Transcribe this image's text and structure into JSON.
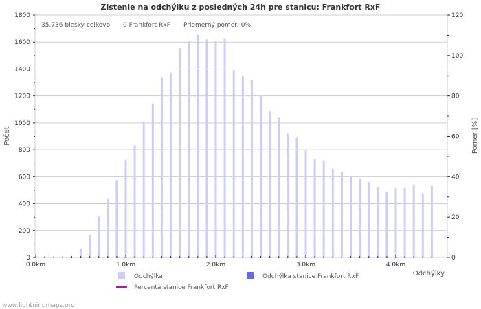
{
  "chart_data": {
    "type": "bar",
    "title": "Zistenie na odchýlku z posledných 24h pre stanicu: Frankfort RxF",
    "stats": {
      "total": "35,736 blesky celkovo",
      "station": "0 Frankfort RxF",
      "ratio": "Priemerný pomer: 0%"
    },
    "xlabel": "Odchýlky",
    "ylabel": "Počet",
    "y2label": "Pomer [%]",
    "x_ticks": [
      "0.0km",
      "1.0km",
      "2.0km",
      "3.0km",
      "4.0km"
    ],
    "x_tick_values": [
      0,
      1,
      2,
      3,
      4
    ],
    "xlim": [
      0,
      4.58
    ],
    "ylim": [
      0,
      1800
    ],
    "y_ticks": [
      "0",
      "200",
      "400",
      "600",
      "800",
      "1000",
      "1200",
      "1400",
      "1600",
      "1800"
    ],
    "y2lim": [
      0,
      120
    ],
    "y2_ticks": [
      "0",
      "20",
      "40",
      "60",
      "80",
      "100",
      "120"
    ],
    "grid": true,
    "x": [
      0,
      0.1,
      0.2,
      0.3,
      0.4,
      0.5,
      0.6,
      0.7,
      0.8,
      0.9,
      1.0,
      1.1,
      1.2,
      1.3,
      1.4,
      1.5,
      1.6,
      1.7,
      1.8,
      1.9,
      2.0,
      2.1,
      2.2,
      2.3,
      2.4,
      2.5,
      2.6,
      2.7,
      2.8,
      2.9,
      3.0,
      3.1,
      3.2,
      3.3,
      3.4,
      3.5,
      3.6,
      3.7,
      3.8,
      3.9,
      4.0,
      4.1,
      4.2,
      4.3,
      4.4
    ],
    "series": [
      {
        "name": "Odchýlka",
        "color": "#ccccff",
        "values": [
          10,
          0,
          0,
          0,
          5,
          65,
          170,
          305,
          435,
          575,
          725,
          835,
          1010,
          1145,
          1340,
          1370,
          1555,
          1605,
          1655,
          1620,
          1610,
          1625,
          1390,
          1350,
          1320,
          1200,
          1085,
          1040,
          920,
          890,
          800,
          730,
          720,
          660,
          635,
          600,
          585,
          560,
          520,
          490,
          515,
          515,
          540,
          475,
          530
        ]
      },
      {
        "name": "Odchýlka stanice Frankfort RxF",
        "color": "#6666ff",
        "values": [
          0,
          0,
          0,
          0,
          0,
          0,
          0,
          0,
          0,
          0,
          0,
          0,
          0,
          0,
          0,
          0,
          0,
          0,
          0,
          0,
          0,
          0,
          0,
          0,
          0,
          0,
          0,
          0,
          0,
          0,
          0,
          0,
          0,
          0,
          0,
          0,
          0,
          0,
          0,
          0,
          0,
          0,
          0,
          0,
          0
        ]
      },
      {
        "name": "Percentá stanice Frankfort RxF",
        "color": "#cc00cc",
        "axis": "right",
        "type": "line",
        "values": [
          0,
          0,
          0,
          0,
          0,
          0,
          0,
          0,
          0,
          0,
          0,
          0,
          0,
          0,
          0,
          0,
          0,
          0,
          0,
          0,
          0,
          0,
          0,
          0,
          0,
          0,
          0,
          0,
          0,
          0,
          0,
          0,
          0,
          0,
          0,
          0,
          0,
          0,
          0,
          0,
          0,
          0,
          0,
          0,
          0
        ]
      }
    ],
    "legend_position": "bottom"
  },
  "footer": "www.lightningmaps.org"
}
